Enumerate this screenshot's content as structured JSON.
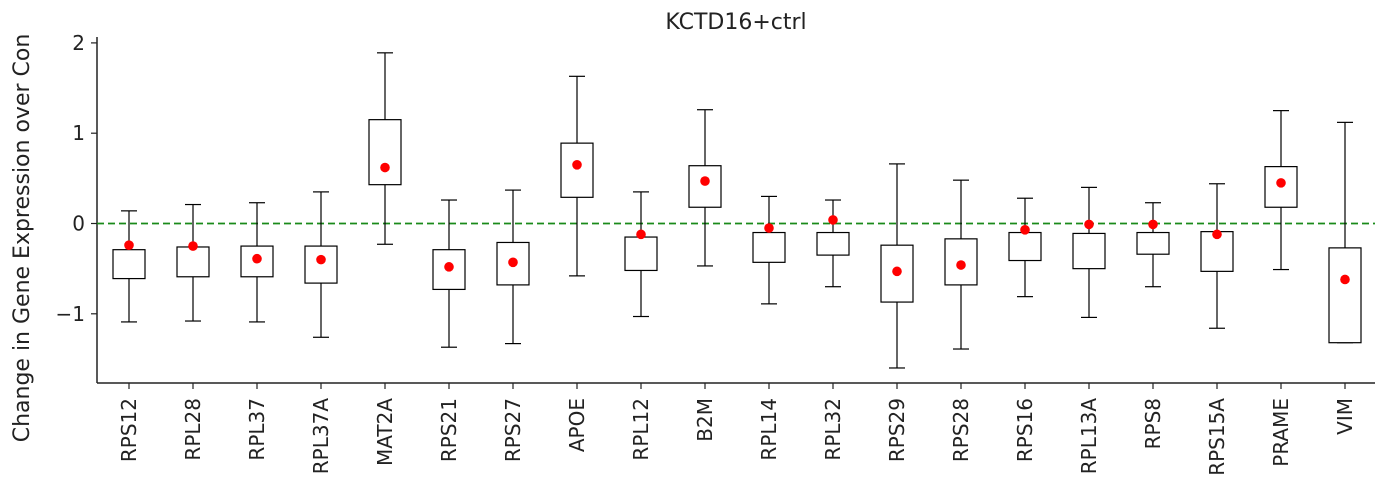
{
  "chart_data": {
    "type": "box",
    "title": "KCTD16+ctrl",
    "xlabel": "",
    "ylabel": "Change in Gene Expression over Con",
    "ylim": [
      -1.75,
      2.05
    ],
    "yticks": [
      {
        "value": 2,
        "label": "2"
      },
      {
        "value": 1,
        "label": "1"
      },
      {
        "value": 0,
        "label": "0"
      },
      {
        "value": -1,
        "label": "−1"
      }
    ],
    "reference_line": {
      "y": 0,
      "color": "#1a8a1a",
      "style": "dashed"
    },
    "colors": {
      "box": "#000000",
      "mean_marker": "#ff0000"
    },
    "grid": false,
    "categories": [
      "RPS12",
      "RPL28",
      "RPL37",
      "RPL37A",
      "MAT2A",
      "RPS21",
      "RPS27",
      "APOE",
      "RPL12",
      "B2M",
      "RPL14",
      "RPL32",
      "RPS29",
      "RPS28",
      "RPS16",
      "RPL13A",
      "RPS8",
      "RPS15A",
      "PRAME",
      "VIM"
    ],
    "boxes": [
      {
        "name": "RPS12",
        "whisker_low": -1.09,
        "q1": -0.61,
        "q3": -0.29,
        "whisker_high": 0.14,
        "mean": -0.24
      },
      {
        "name": "RPL28",
        "whisker_low": -1.08,
        "q1": -0.59,
        "q3": -0.26,
        "whisker_high": 0.21,
        "mean": -0.25
      },
      {
        "name": "RPL37",
        "whisker_low": -1.09,
        "q1": -0.59,
        "q3": -0.25,
        "whisker_high": 0.23,
        "mean": -0.39
      },
      {
        "name": "RPL37A",
        "whisker_low": -1.26,
        "q1": -0.66,
        "q3": -0.25,
        "whisker_high": 0.35,
        "mean": -0.4
      },
      {
        "name": "MAT2A",
        "whisker_low": -0.23,
        "q1": 0.43,
        "q3": 1.15,
        "whisker_high": 1.89,
        "mean": 0.62
      },
      {
        "name": "RPS21",
        "whisker_low": -1.37,
        "q1": -0.73,
        "q3": -0.29,
        "whisker_high": 0.26,
        "mean": -0.48
      },
      {
        "name": "RPS27",
        "whisker_low": -1.33,
        "q1": -0.68,
        "q3": -0.21,
        "whisker_high": 0.37,
        "mean": -0.43
      },
      {
        "name": "APOE",
        "whisker_low": -0.58,
        "q1": 0.29,
        "q3": 0.89,
        "whisker_high": 1.63,
        "mean": 0.65
      },
      {
        "name": "RPL12",
        "whisker_low": -1.03,
        "q1": -0.52,
        "q3": -0.15,
        "whisker_high": 0.35,
        "mean": -0.12
      },
      {
        "name": "B2M",
        "whisker_low": -0.47,
        "q1": 0.18,
        "q3": 0.64,
        "whisker_high": 1.26,
        "mean": 0.47
      },
      {
        "name": "RPL14",
        "whisker_low": -0.89,
        "q1": -0.43,
        "q3": -0.1,
        "whisker_high": 0.3,
        "mean": -0.05
      },
      {
        "name": "RPL32",
        "whisker_low": -0.7,
        "q1": -0.35,
        "q3": -0.1,
        "whisker_high": 0.26,
        "mean": 0.04
      },
      {
        "name": "RPS29",
        "whisker_low": -1.6,
        "q1": -0.87,
        "q3": -0.24,
        "whisker_high": 0.66,
        "mean": -0.53
      },
      {
        "name": "RPS28",
        "whisker_low": -1.39,
        "q1": -0.68,
        "q3": -0.17,
        "whisker_high": 0.48,
        "mean": -0.46
      },
      {
        "name": "RPS16",
        "whisker_low": -0.81,
        "q1": -0.41,
        "q3": -0.1,
        "whisker_high": 0.28,
        "mean": -0.07
      },
      {
        "name": "RPL13A",
        "whisker_low": -1.04,
        "q1": -0.5,
        "q3": -0.11,
        "whisker_high": 0.4,
        "mean": -0.01
      },
      {
        "name": "RPS8",
        "whisker_low": -0.7,
        "q1": -0.34,
        "q3": -0.1,
        "whisker_high": 0.23,
        "mean": -0.01
      },
      {
        "name": "RPS15A",
        "whisker_low": -1.16,
        "q1": -0.53,
        "q3": -0.09,
        "whisker_high": 0.44,
        "mean": -0.12
      },
      {
        "name": "PRAME",
        "whisker_low": -0.51,
        "q1": 0.18,
        "q3": 0.63,
        "whisker_high": 1.25,
        "mean": 0.45
      },
      {
        "name": "VIM",
        "whisker_low": -1.32,
        "q1": -1.32,
        "q3": -0.27,
        "whisker_high": 1.12,
        "mean": -0.62
      }
    ]
  }
}
